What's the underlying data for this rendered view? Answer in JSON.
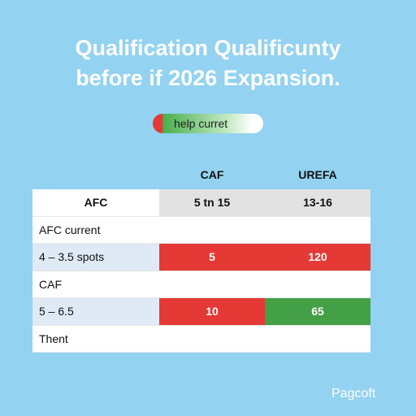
{
  "header": {
    "title_lines": [
      "Qualification Qualificunty",
      "before if 2026 Expansion."
    ]
  },
  "toggle": {
    "label": "help curret"
  },
  "table": {
    "column_groups": [
      "CAF",
      "UREFA"
    ],
    "rows": [
      [
        "AFC",
        "5 tn 15",
        "13-16"
      ],
      [
        "AFC current",
        "",
        ""
      ],
      [
        "4 – 3.5 spots",
        "5",
        "120"
      ],
      [
        "CAF",
        "",
        ""
      ],
      [
        "5 – 6.5",
        "10",
        "65"
      ],
      [
        "Thent",
        "",
        ""
      ]
    ]
  },
  "footer": {
    "brand": "Pagcoft"
  }
}
